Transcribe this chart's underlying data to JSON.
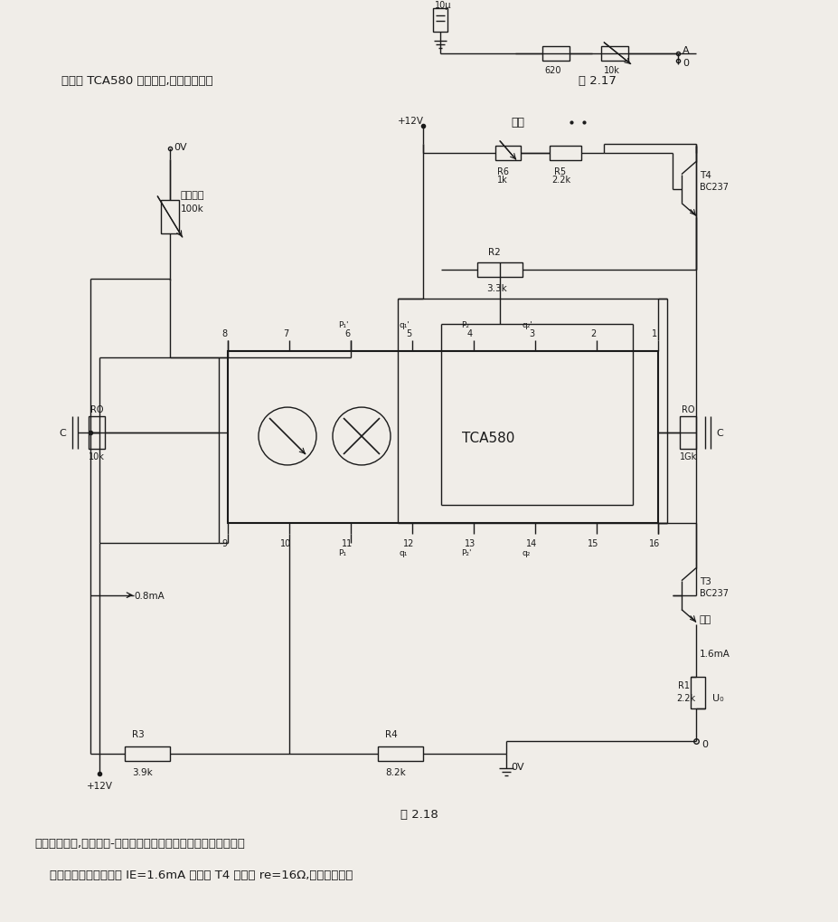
{
  "bg_color": "#f0ede8",
  "line_color": "#1a1a1a",
  "text_color": "#1a1a1a",
  "header_text": "为了用 TCA580 作振荡器,必须要外接电",
  "fig_label_top": "图 2.17",
  "fig_label_bottom": "图 2.18",
  "bottom_text1": "路以补偿衰减,使回转器-振荡回路的品质因数变得无限大或负值。",
  "bottom_text2": "    图示电路中在射极电流 IE=1.6mA 情况下 T4 管内阻 re=16Ω,则品质因数为"
}
